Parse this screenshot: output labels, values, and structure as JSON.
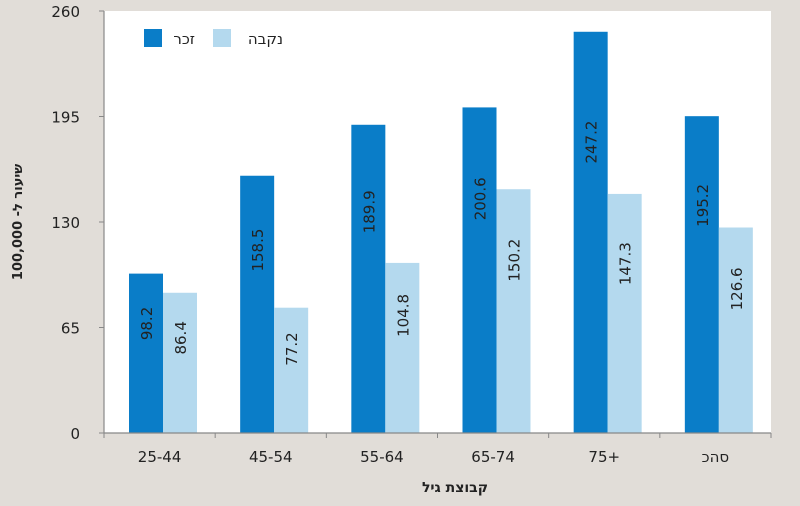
{
  "chart_data": {
    "type": "bar",
    "title": "",
    "xlabel": "קבוצת גיל",
    "ylabel": "שיעור ל- 100,000",
    "ylim": [
      0,
      260
    ],
    "yticks": [
      "0",
      "65",
      "130",
      "195",
      "260"
    ],
    "categories": [
      "25-44",
      "45-54",
      "55-64",
      "65-74",
      "75+",
      "סהכ"
    ],
    "series": [
      {
        "name": "זכר",
        "color": "#0a7dc8",
        "values": [
          98.2,
          158.5,
          189.9,
          200.6,
          247.2,
          195.2
        ]
      },
      {
        "name": "נקבה",
        "color": "#b4d9ee",
        "values": [
          86.4,
          77.2,
          104.8,
          150.2,
          147.3,
          126.6
        ]
      }
    ],
    "legend_position": "top-left",
    "grid": false
  }
}
